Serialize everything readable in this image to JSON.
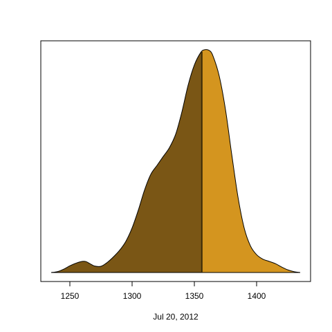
{
  "chart_data": {
    "type": "area",
    "title": "",
    "xlabel": "Jul 20, 2012",
    "ylabel": "",
    "xlim": [
      1235,
      1435
    ],
    "ylim": [
      0,
      1
    ],
    "x_ticks": [
      1250,
      1300,
      1350,
      1400
    ],
    "x_tick_labels": [
      "1250",
      "1300",
      "1350",
      "1400"
    ],
    "grid": false,
    "legend": "none",
    "split_x": 1356,
    "colors": {
      "left_fill": "#7a5615",
      "right_fill": "#d4951f",
      "outline": "#000000",
      "split_line": "#3a2a08"
    },
    "density": {
      "x": [
        1235,
        1240,
        1245,
        1250,
        1255,
        1260,
        1263,
        1266,
        1270,
        1275,
        1280,
        1285,
        1290,
        1295,
        1300,
        1305,
        1310,
        1315,
        1320,
        1325,
        1330,
        1335,
        1340,
        1345,
        1350,
        1355,
        1358,
        1362,
        1365,
        1370,
        1375,
        1380,
        1385,
        1390,
        1395,
        1400,
        1405,
        1410,
        1415,
        1420,
        1425,
        1430,
        1435
      ],
      "y": [
        0.0,
        0.004,
        0.015,
        0.03,
        0.042,
        0.05,
        0.049,
        0.04,
        0.029,
        0.028,
        0.045,
        0.07,
        0.1,
        0.14,
        0.2,
        0.28,
        0.37,
        0.44,
        0.48,
        0.52,
        0.56,
        0.62,
        0.72,
        0.84,
        0.93,
        0.985,
        0.998,
        0.995,
        0.97,
        0.88,
        0.73,
        0.53,
        0.34,
        0.2,
        0.12,
        0.08,
        0.06,
        0.05,
        0.04,
        0.025,
        0.012,
        0.004,
        0.0
      ]
    }
  }
}
